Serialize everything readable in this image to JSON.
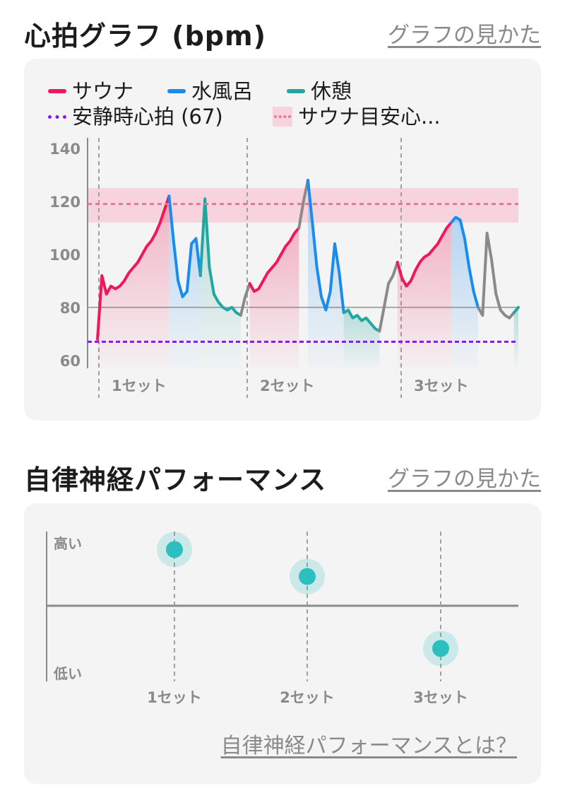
{
  "heart": {
    "title": "心拍グラフ (bpm)",
    "help_link": "グラフの見かた",
    "legend": {
      "sauna": "サウナ",
      "water": "水風呂",
      "rest": "休憩",
      "resting_hr": "安静時心拍 (67)",
      "sauna_target": "サウナ目安心..."
    },
    "colors": {
      "sauna": "#f0185a",
      "water": "#1a8cf0",
      "rest": "#22a6a0",
      "other": "#8a8a8a",
      "resting": "#8a18f0",
      "target": "#e87795"
    }
  },
  "chart_data": {
    "type": "line",
    "ylim": [
      57,
      144
    ],
    "yticks": [
      "140",
      "120",
      "100",
      "80",
      "60"
    ],
    "ytick_values": [
      140,
      120,
      100,
      80,
      60
    ],
    "resting_hr": 67,
    "target_band": [
      112,
      125
    ],
    "target_line": 119,
    "baseline": 80,
    "sets": [
      "1セット",
      "2セット",
      "3セット"
    ],
    "series": [
      {
        "phase": "sauna",
        "values": [
          68,
          92,
          85,
          88,
          87,
          88,
          90,
          93,
          95,
          97,
          100,
          103,
          105,
          108,
          112,
          117,
          122
        ]
      },
      {
        "phase": "water",
        "values": [
          122,
          105,
          90,
          84,
          86,
          104,
          106,
          92
        ]
      },
      {
        "phase": "rest",
        "values": [
          92,
          121,
          95,
          85,
          82,
          80,
          79,
          80,
          78,
          77
        ]
      },
      {
        "phase": "other",
        "values": [
          77,
          84,
          89
        ]
      },
      {
        "phase": "sauna",
        "values": [
          89,
          86,
          87,
          90,
          93,
          95,
          97,
          100,
          103,
          105,
          108,
          110
        ]
      },
      {
        "phase": "other",
        "values": [
          110,
          120,
          128
        ]
      },
      {
        "phase": "water",
        "values": [
          128,
          112,
          95,
          84,
          79,
          86,
          104,
          93,
          78
        ]
      },
      {
        "phase": "rest",
        "values": [
          78,
          79,
          76,
          77,
          75,
          76,
          74,
          72,
          71
        ]
      },
      {
        "phase": "other",
        "values": [
          71,
          80,
          89,
          92,
          97
        ]
      },
      {
        "phase": "sauna",
        "values": [
          97,
          91,
          88,
          90,
          94,
          97,
          99,
          100,
          102,
          104,
          107,
          110,
          112
        ]
      },
      {
        "phase": "water",
        "values": [
          112,
          114,
          113,
          106,
          95,
          86,
          80
        ]
      },
      {
        "phase": "other",
        "values": [
          80,
          77,
          108,
          98,
          85,
          79,
          77,
          76,
          78
        ]
      },
      {
        "phase": "rest",
        "values": [
          78,
          80
        ]
      }
    ]
  },
  "ans": {
    "title": "自律神経パフォーマンス",
    "help_link": "グラフの見かた",
    "high_label": "高い",
    "low_label": "低い",
    "sets": [
      "1セット",
      "2セット",
      "3セット"
    ],
    "values": [
      0.88,
      0.7,
      0.22
    ],
    "color": "#2bbfbf",
    "what_is_link": "自律神経パフォーマンスとは？"
  }
}
